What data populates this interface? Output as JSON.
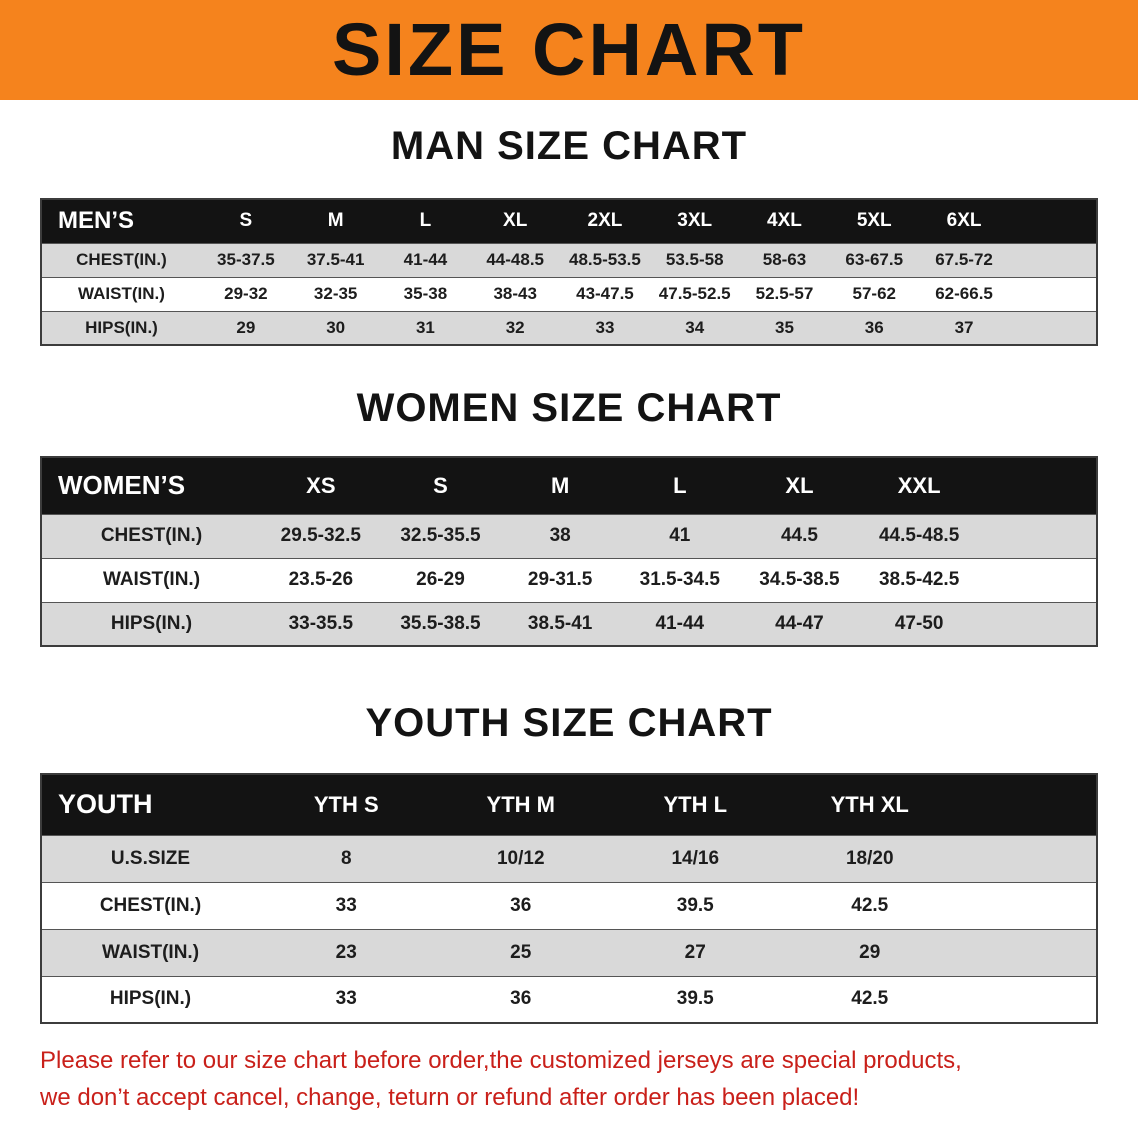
{
  "banner": {
    "title": "SIZE CHART"
  },
  "colors": {
    "banner_bg": "#f5831d",
    "header_row_bg": "#131313",
    "row_alt_bg": "#d9d9d9",
    "disclaimer_text": "#c9201a"
  },
  "sections": [
    {
      "id": "man",
      "heading": "MAN SIZE CHART",
      "table": {
        "header": [
          "MEN’S",
          "S",
          "M",
          "L",
          "XL",
          "2XL",
          "3XL",
          "4XL",
          "5XL",
          "6XL"
        ],
        "rows": [
          [
            "CHEST(IN.)",
            "35-37.5",
            "37.5-41",
            "41-44",
            "44-48.5",
            "48.5-53.5",
            "53.5-58",
            "58-63",
            "63-67.5",
            "67.5-72"
          ],
          [
            "WAIST(IN.)",
            "29-32",
            "32-35",
            "35-38",
            "38-43",
            "43-47.5",
            "47.5-52.5",
            "52.5-57",
            "57-62",
            "62-66.5"
          ],
          [
            "HIPS(IN.)",
            "29",
            "30",
            "31",
            "32",
            "33",
            "34",
            "35",
            "36",
            "37"
          ]
        ]
      }
    },
    {
      "id": "women",
      "heading": "WOMEN SIZE CHART",
      "table": {
        "header": [
          "WOMEN’S",
          "XS",
          "S",
          "M",
          "L",
          "XL",
          "XXL"
        ],
        "rows": [
          [
            "CHEST(IN.)",
            "29.5-32.5",
            "32.5-35.5",
            "38",
            "41",
            "44.5",
            "44.5-48.5"
          ],
          [
            "WAIST(IN.)",
            "23.5-26",
            "26-29",
            "29-31.5",
            "31.5-34.5",
            "34.5-38.5",
            "38.5-42.5"
          ],
          [
            "HIPS(IN.)",
            "33-35.5",
            "35.5-38.5",
            "38.5-41",
            "41-44",
            "44-47",
            "47-50"
          ]
        ]
      }
    },
    {
      "id": "youth",
      "heading": "YOUTH SIZE CHART",
      "table": {
        "header": [
          "YOUTH",
          "YTH S",
          "YTH M",
          "YTH L",
          "YTH XL"
        ],
        "rows": [
          [
            "U.S.SIZE",
            "8",
            "10/12",
            "14/16",
            "18/20"
          ],
          [
            "CHEST(IN.)",
            "33",
            "36",
            "39.5",
            "42.5"
          ],
          [
            "WAIST(IN.)",
            "23",
            "25",
            "27",
            "29"
          ],
          [
            "HIPS(IN.)",
            "33",
            "36",
            "39.5",
            "42.5"
          ]
        ]
      }
    }
  ],
  "disclaimer": {
    "line1": "Please refer to our size chart before order,the customized jerseys are special products,",
    "line2": "we don’t accept cancel, change, teturn or refund after order has been placed!"
  }
}
